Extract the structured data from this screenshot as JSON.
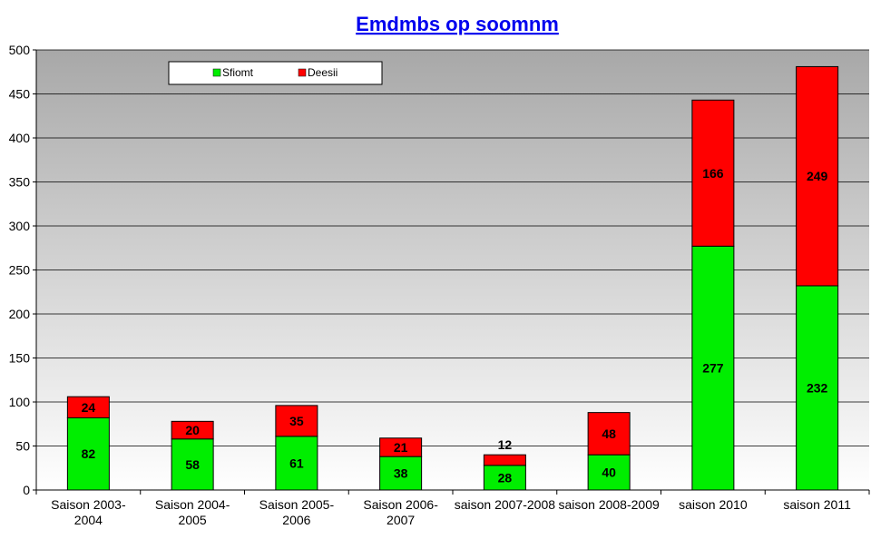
{
  "chart_data": {
    "type": "bar",
    "stacked": true,
    "title": "Emdmbs op soomnm",
    "xlabel": "",
    "ylabel": "",
    "ylim": [
      0,
      500
    ],
    "yticks": [
      0,
      50,
      100,
      150,
      200,
      250,
      300,
      350,
      400,
      450,
      500
    ],
    "grid": true,
    "legend_position": "top-left",
    "categories": [
      [
        "Saison 2003-",
        "2004"
      ],
      [
        "Saison 2004-",
        "2005"
      ],
      [
        "Saison 2005-",
        "2006"
      ],
      [
        "Saison 2006-",
        "2007"
      ],
      [
        "saison 2007-2008"
      ],
      [
        "saison 2008-2009"
      ],
      [
        "saison 2010"
      ],
      [
        "saison 2011"
      ]
    ],
    "series": [
      {
        "name": "Sfiomt",
        "color": "#00ee00",
        "values": [
          82,
          58,
          61,
          38,
          28,
          40,
          277,
          232
        ]
      },
      {
        "name": "Deesii",
        "color": "#ff0000",
        "values": [
          24,
          20,
          35,
          21,
          12,
          48,
          166,
          249
        ]
      }
    ],
    "plot_background": [
      "#a8a8a8",
      "#ffffff"
    ]
  }
}
